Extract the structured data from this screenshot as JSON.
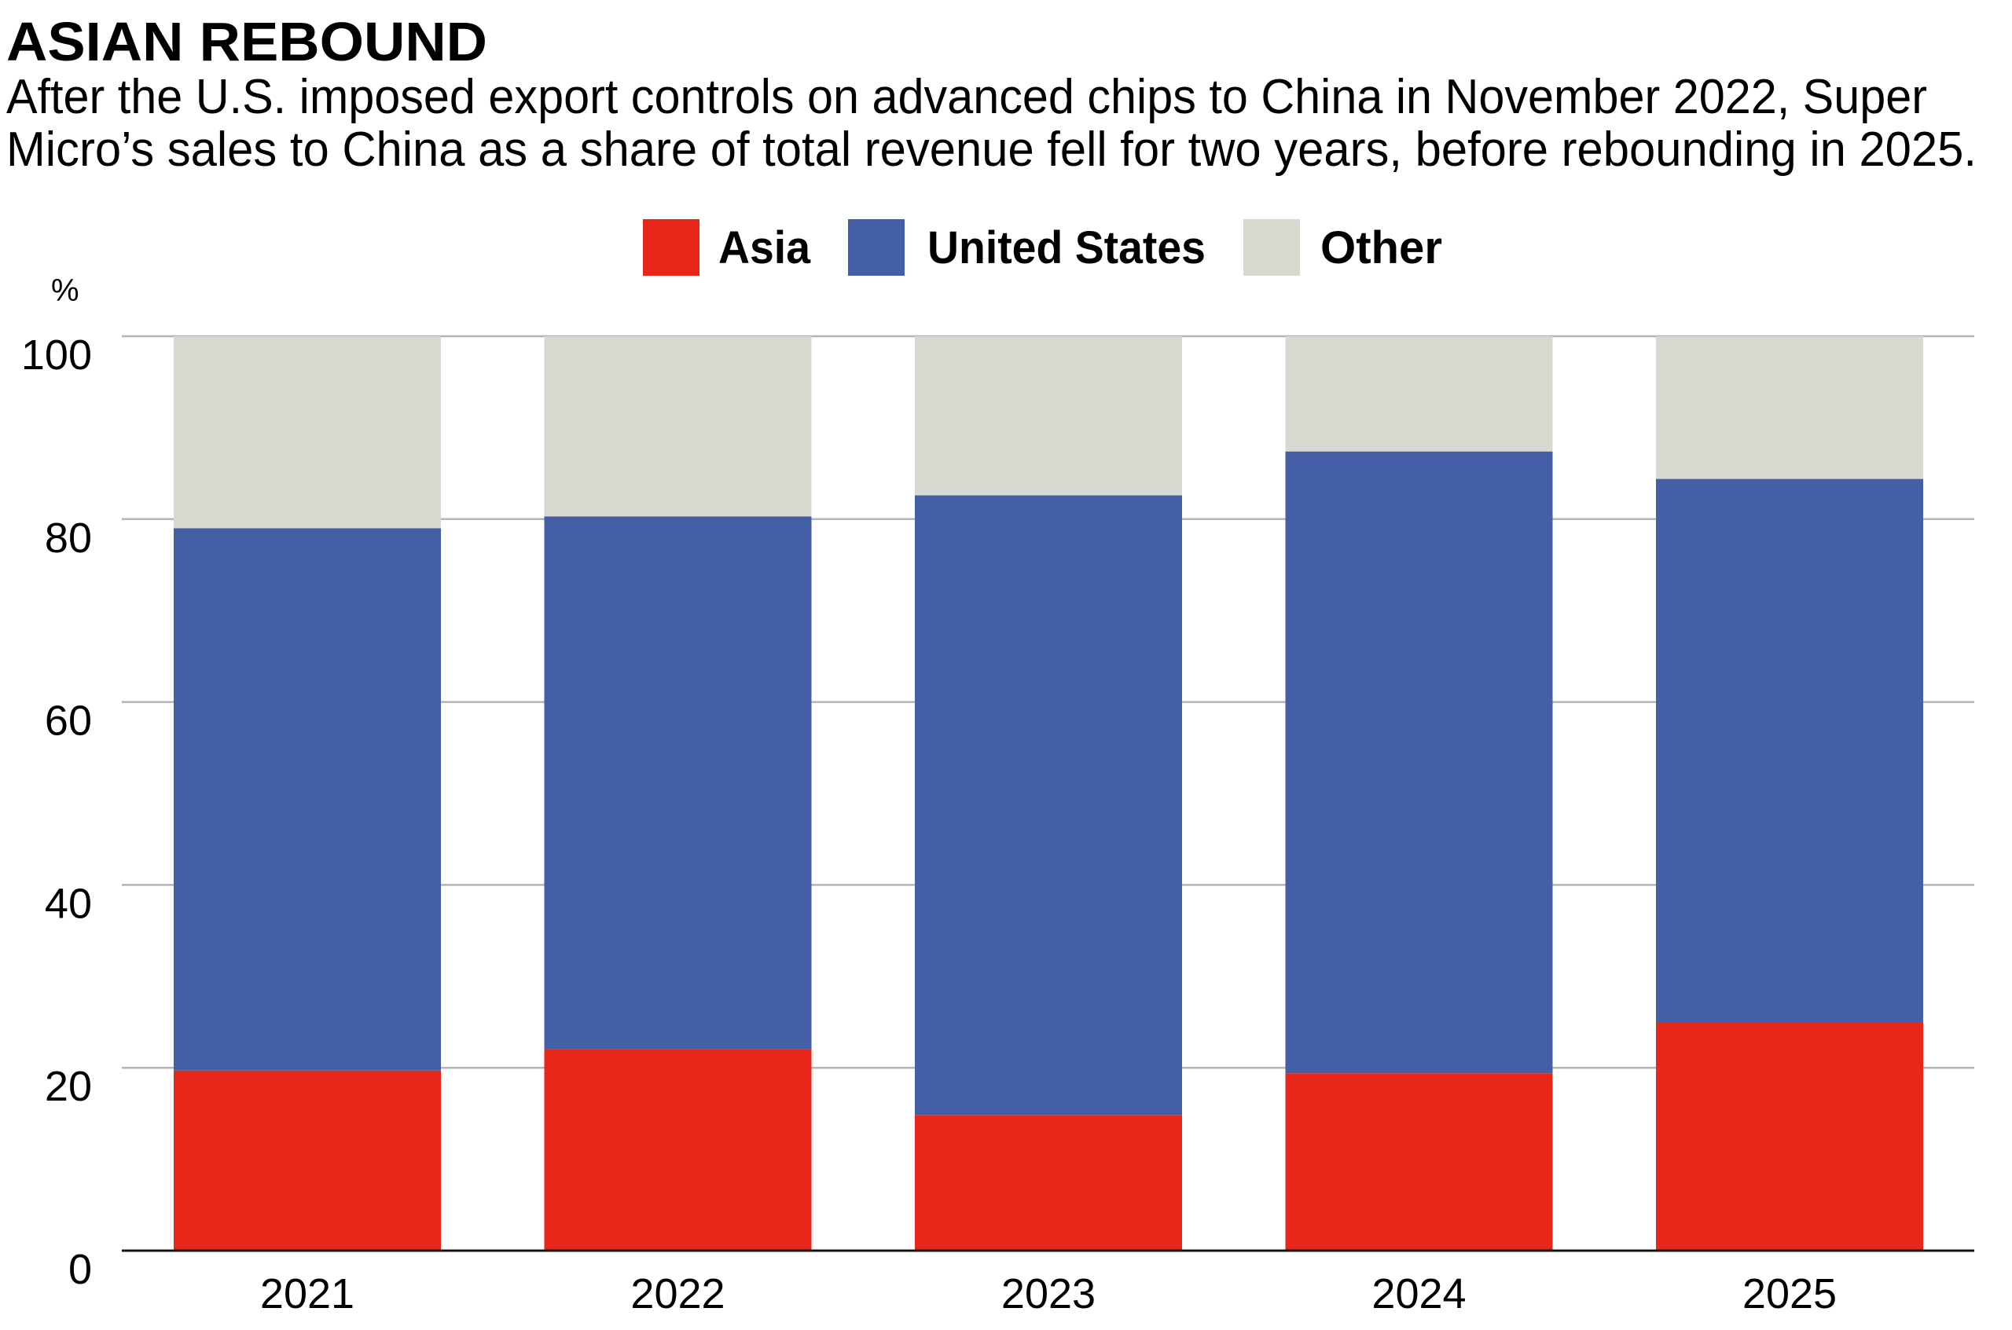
{
  "chart_data": {
    "type": "bar",
    "stacked": true,
    "title": "ASIAN REBOUND",
    "subtitle_lines": [
      "After the U.S. imposed export controls on advanced chips to China in November 2022, Super",
      "Micro’s sales to China as a share of total revenue fell for two years, before rebounding in 2025."
    ],
    "categories": [
      "2021",
      "2022",
      "2023",
      "2024",
      "2025"
    ],
    "series": [
      {
        "name": "Asia",
        "color": "#E9261A",
        "values": [
          19.7,
          22.0,
          14.8,
          19.4,
          25.0
        ]
      },
      {
        "name": "United States",
        "color": "#445FA6",
        "values": [
          59.3,
          58.3,
          67.8,
          68.0,
          59.4
        ]
      },
      {
        "name": "Other",
        "color": "#D8D8D0",
        "values": [
          21.0,
          19.7,
          17.4,
          12.6,
          15.6
        ]
      }
    ],
    "xlabel": "",
    "ylabel": "%",
    "ylim": [
      0,
      100
    ],
    "yticks": [
      0,
      20,
      40,
      60,
      80,
      100
    ],
    "ytick_labels": [
      "0",
      "20",
      "40",
      "60",
      "80",
      "100"
    ],
    "grid": true,
    "legend": "top-center"
  }
}
